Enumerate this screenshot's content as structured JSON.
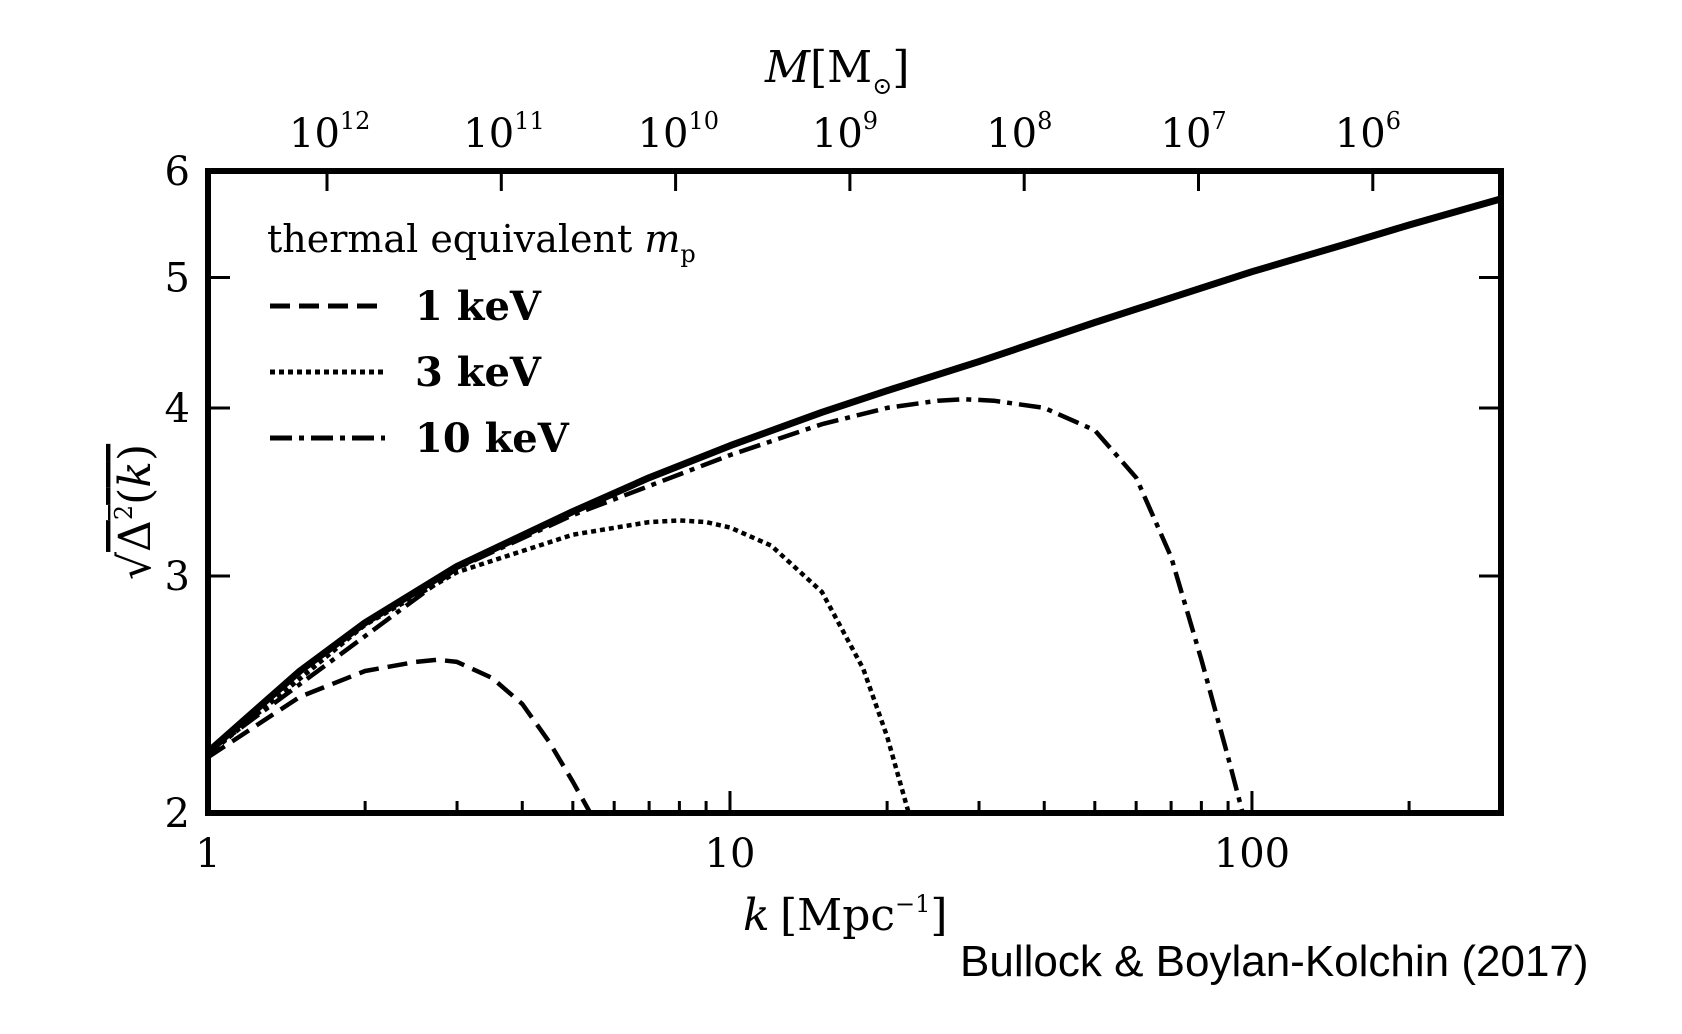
{
  "chart_data": {
    "type": "line",
    "top_axis": {
      "label": "M [M⊙]",
      "tick_labels": [
        "10^12",
        "10^11",
        "10^10",
        "10^9",
        "10^8",
        "10^7",
        "10^6"
      ],
      "tick_exponents": [
        "12",
        "11",
        "10",
        "9",
        "8",
        "7",
        "6"
      ]
    },
    "xaxis": {
      "label": "k [Mpc−1]",
      "scale": "log",
      "range": [
        1,
        300
      ],
      "tick_labels": [
        "1",
        "10",
        "100"
      ],
      "ticks": [
        1,
        10,
        100
      ]
    },
    "yaxis": {
      "label": "√Δ²(k)",
      "scale": "log",
      "range": [
        2,
        6
      ],
      "tick_labels": [
        "2",
        "3",
        "4",
        "5",
        "6"
      ],
      "ticks": [
        2,
        3,
        4,
        5,
        6
      ]
    },
    "legend": {
      "title": "thermal equivalent m_p",
      "position": "top-left",
      "entries": [
        "1 keV",
        "3 keV",
        "10 keV"
      ]
    },
    "series": [
      {
        "name": "",
        "style": "solid",
        "x": [
          1,
          1.5,
          2,
          3,
          5,
          7,
          10,
          15,
          20,
          30,
          50,
          70,
          100,
          150,
          200,
          300
        ],
        "y": [
          2.22,
          2.55,
          2.77,
          3.05,
          3.35,
          3.55,
          3.75,
          3.97,
          4.12,
          4.33,
          4.63,
          4.83,
          5.05,
          5.29,
          5.47,
          5.72
        ]
      },
      {
        "name": "1 keV",
        "style": "dashed",
        "x": [
          1,
          1.5,
          2,
          2.5,
          2.75,
          3,
          3.5,
          4,
          4.5,
          5,
          5.4
        ],
        "y": [
          2.2,
          2.44,
          2.55,
          2.59,
          2.6,
          2.59,
          2.52,
          2.41,
          2.26,
          2.11,
          2.0
        ]
      },
      {
        "name": "3 keV",
        "style": "dotted",
        "x": [
          1,
          2,
          3,
          5,
          7,
          8,
          9,
          10,
          12,
          15,
          18,
          20,
          22
        ],
        "y": [
          2.21,
          2.76,
          3.02,
          3.22,
          3.29,
          3.3,
          3.29,
          3.26,
          3.16,
          2.92,
          2.56,
          2.28,
          2.0
        ]
      },
      {
        "name": "10 keV",
        "style": "dashdot",
        "x": [
          1,
          3,
          5,
          10,
          15,
          20,
          25,
          28,
          32,
          40,
          50,
          60,
          70,
          80,
          90,
          96
        ],
        "y": [
          2.22,
          3.04,
          3.33,
          3.69,
          3.89,
          4.0,
          4.05,
          4.06,
          4.05,
          4.0,
          3.85,
          3.55,
          3.1,
          2.6,
          2.2,
          2.0
        ]
      }
    ]
  },
  "credit": "Bullock & Boylan-Kolchin (2017)"
}
